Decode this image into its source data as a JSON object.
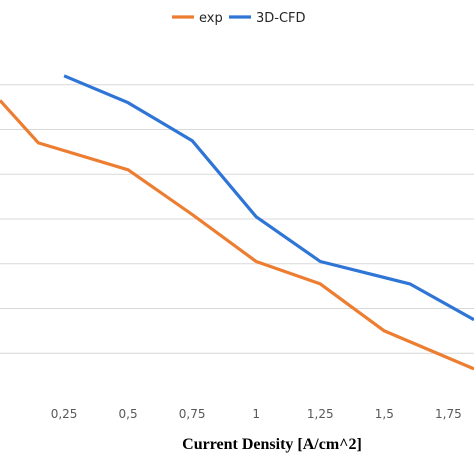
{
  "chart_data": {
    "type": "line",
    "xlabel": "Current Density [A/cm^2]",
    "ylabel": "",
    "xlim": [
      0.0,
      1.85
    ],
    "ylim": [
      0,
      8
    ],
    "x_ticks": [
      0.25,
      0.5,
      0.75,
      1.0,
      1.25,
      1.5,
      1.75
    ],
    "x_tick_labels": [
      "0,25",
      "0,5",
      "0,75",
      "1",
      "1,25",
      "1,5",
      "1,75"
    ],
    "y_gridlines": [
      1,
      2,
      3,
      4,
      5,
      6,
      7
    ],
    "grid": true,
    "legend_position": "top-center",
    "series": [
      {
        "name": "exp",
        "color": "#ed7d31",
        "x": [
          0.0,
          0.15,
          0.5,
          0.75,
          1.0,
          1.25,
          1.5,
          1.85
        ],
        "y": [
          6.65,
          5.7,
          5.1,
          4.1,
          3.05,
          2.55,
          1.5,
          0.65
        ]
      },
      {
        "name": "3D-CFD",
        "color": "#2e75d6",
        "x": [
          0.25,
          0.5,
          0.75,
          1.0,
          1.25,
          1.6,
          1.85
        ],
        "y": [
          7.2,
          6.6,
          5.75,
          4.05,
          3.05,
          2.55,
          1.75
        ]
      }
    ]
  }
}
